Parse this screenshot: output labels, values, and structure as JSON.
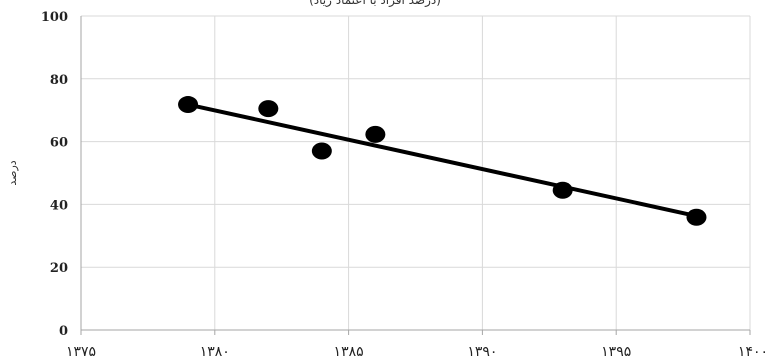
{
  "chart_data": {
    "type": "scatter",
    "title": "(درصد افراد با اعتماد زیاد)",
    "ylabel": "درصد",
    "xlabel": "",
    "xlim": [
      1375,
      1400
    ],
    "ylim": [
      0,
      100
    ],
    "x_ticks": [
      1375,
      1380,
      1385,
      1390,
      1395,
      1400
    ],
    "x_tick_labels": [
      "۱۳۷۵",
      "۱۳۸۰",
      "۱۳۸۵",
      "۱۳۹۰",
      "۱۳۹۵",
      "۱۴۰۰"
    ],
    "y_ticks": [
      0,
      20,
      40,
      60,
      80,
      100
    ],
    "y_tick_labels": [
      "0",
      "20",
      "40",
      "60",
      "80",
      "100"
    ],
    "grid": "vertical and horizontal",
    "series": [
      {
        "points": [
          {
            "x": 1379,
            "y": 71.8
          },
          {
            "x": 1382,
            "y": 70.5
          },
          {
            "x": 1384,
            "y": 57.0
          },
          {
            "x": 1386,
            "y": 62.3
          },
          {
            "x": 1393,
            "y": 44.5
          },
          {
            "x": 1398,
            "y": 35.9
          }
        ],
        "marker_color": "#000000"
      }
    ],
    "trendline": {
      "type": "linear",
      "x_start": 1379,
      "y_start": 71.8,
      "x_end": 1398,
      "y_end": 36.3,
      "color": "#000000"
    }
  }
}
